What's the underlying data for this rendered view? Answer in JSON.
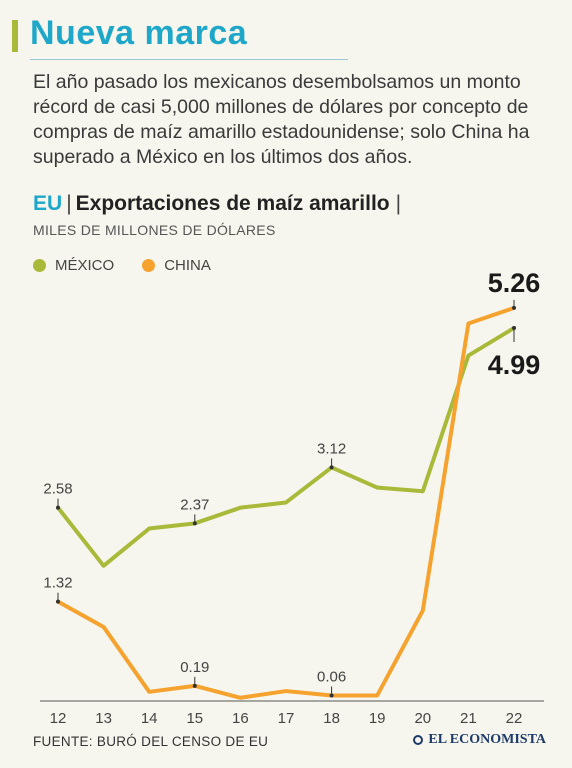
{
  "header": {
    "title": "Nueva marca",
    "intro": "El año pasado los mexicanos desembolsamos un monto récord de casi 5,000 millones de dólares por concepto de compras de maíz amarillo estadounidense; solo China ha superado a México en los últimos dos años."
  },
  "chart_header": {
    "country": "EU",
    "separator": "|",
    "title": "Exportaciones de maíz amarillo",
    "trailing_separator": "|",
    "units": "MILES DE MILLONES DE DÓLARES"
  },
  "legend": [
    {
      "label": "MÉXICO",
      "color": "#a9b93a"
    },
    {
      "label": "CHINA",
      "color": "#f5a22f"
    }
  ],
  "chart_data": {
    "type": "line",
    "x": [
      "12",
      "13",
      "14",
      "15",
      "16",
      "17",
      "18",
      "19",
      "20",
      "21",
      "22"
    ],
    "ylim": [
      0,
      5.5
    ],
    "grid": false,
    "legend_placement": "top-left",
    "series": [
      {
        "name": "MÉXICO",
        "color": "#a9b93a",
        "values": [
          2.58,
          1.8,
          2.3,
          2.37,
          2.58,
          2.65,
          3.12,
          2.85,
          2.8,
          4.62,
          4.99
        ]
      },
      {
        "name": "CHINA",
        "color": "#f5a22f",
        "values": [
          1.32,
          0.98,
          0.11,
          0.19,
          0.03,
          0.12,
          0.06,
          0.06,
          1.2,
          5.05,
          5.26
        ]
      }
    ],
    "annotations": [
      {
        "series": 0,
        "index": 0,
        "text": "2.58",
        "emphasis": false
      },
      {
        "series": 0,
        "index": 3,
        "text": "2.37",
        "emphasis": false
      },
      {
        "series": 0,
        "index": 6,
        "text": "3.12",
        "emphasis": false
      },
      {
        "series": 0,
        "index": 10,
        "text": "4.99",
        "emphasis": true
      },
      {
        "series": 1,
        "index": 0,
        "text": "1.32",
        "emphasis": false
      },
      {
        "series": 1,
        "index": 3,
        "text": "0.19",
        "emphasis": false
      },
      {
        "series": 1,
        "index": 6,
        "text": "0.06",
        "emphasis": false
      },
      {
        "series": 1,
        "index": 10,
        "text": "5.26",
        "emphasis": true
      }
    ]
  },
  "footer": {
    "source": "FUENTE: BURÓ DEL CENSO DE EU",
    "logo": "EL ECONOMISTA"
  }
}
